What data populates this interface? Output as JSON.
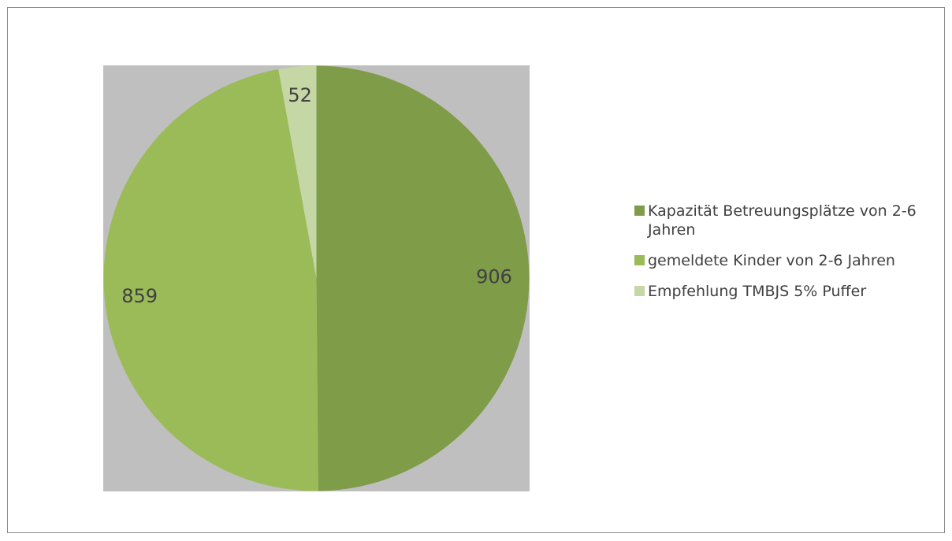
{
  "chart_data": {
    "type": "pie",
    "title": "",
    "categories": [
      "Kapazität Betreuungsplätze von 2-6 Jahren",
      "gemeldete Kinder von 2-6 Jahren",
      "Empfehlung TMBJS 5% Puffer"
    ],
    "values": [
      906,
      859,
      52
    ],
    "colors": [
      "#7f9c49",
      "#9bbb59",
      "#c4d7a5"
    ],
    "data_labels": [
      "906",
      "859",
      "52"
    ],
    "legend_position": "right",
    "label_color": "#404040"
  },
  "legend": {
    "items": [
      {
        "label": "Kapazität Betreuungsplätze von 2-6 Jahren",
        "color": "#7f9c49"
      },
      {
        "label": "gemeldete Kinder von 2-6 Jahren",
        "color": "#9bbb59"
      },
      {
        "label": "Empfehlung TMBJS 5% Puffer",
        "color": "#c4d7a5"
      }
    ]
  }
}
